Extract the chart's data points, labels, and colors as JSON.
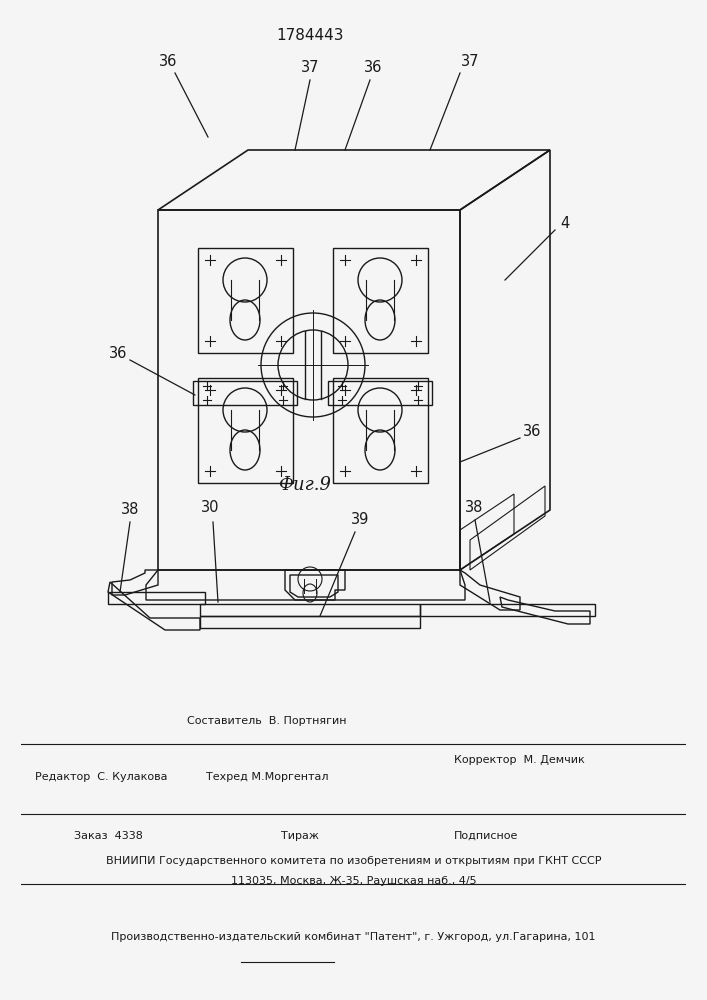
{
  "title": "1784443",
  "fig_label": "Фиг.9",
  "bg_color": "#f5f5f5",
  "line_color": "#1a1a1a",
  "footer": {
    "line1_left": "Редактор  С. Кулакова",
    "line1_center_top": "Составитель  В. Портнягин",
    "line1_center_bot": "Техред М.Моргентал",
    "line1_right": "Корректор  М. Демчик",
    "line2_left": "Заказ  4338",
    "line2_center": "Тираж",
    "line2_right": "Подписное",
    "line3": "ВНИИПИ Государственного комитета по изобретениям и открытиям при ГКНТ СССР",
    "line4": "113035, Москва, Ж-35, Раушская наб., 4/5",
    "line5": "Производственно-издательский комбинат \"Патент\", г. Ужгород, ул.Гагарина, 101"
  }
}
